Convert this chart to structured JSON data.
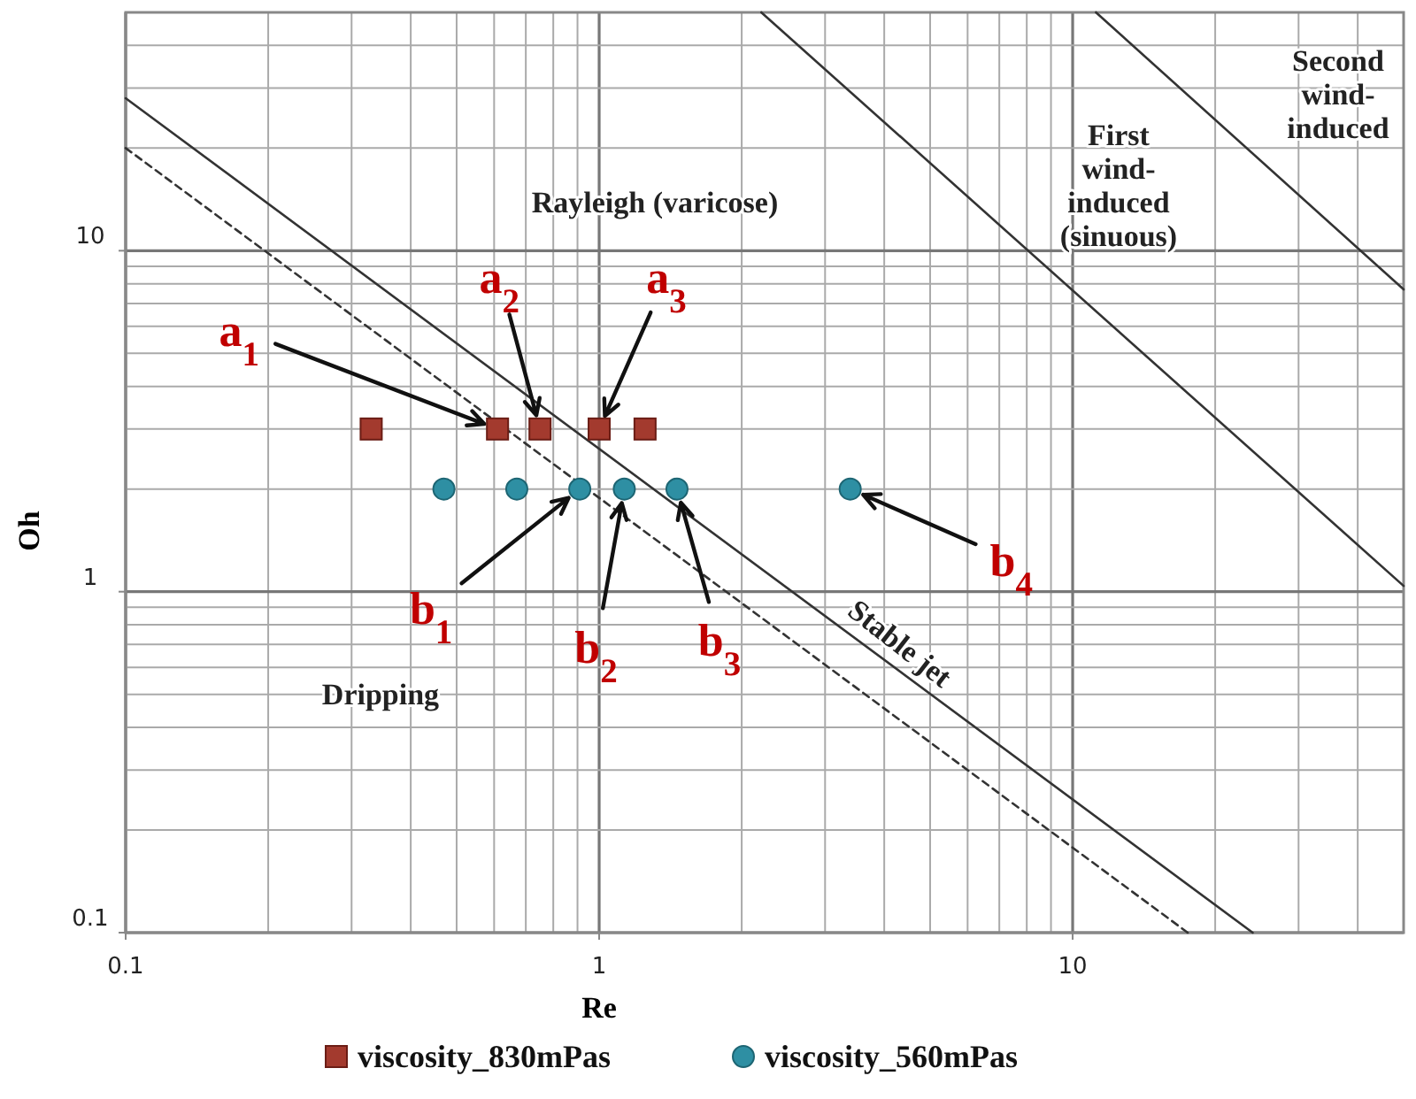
{
  "chart_data": {
    "type": "scatter",
    "xlabel": "Re",
    "ylabel": "Oh",
    "log": "xy",
    "grid": true,
    "legend": "bottom",
    "xlim": [
      0.1,
      50
    ],
    "ylim": [
      0.1,
      50
    ],
    "xticks": [
      0.1,
      1,
      10
    ],
    "yticks": [
      0.1,
      1,
      10
    ],
    "series": [
      {
        "name": "viscosity_830mPas",
        "marker": "square",
        "color": "#a33a2e",
        "x": [
          0.33,
          0.61,
          0.75,
          1.0,
          1.25
        ],
        "values": [
          3,
          3,
          3,
          3,
          3
        ]
      },
      {
        "name": "viscosity_560mPas",
        "marker": "circle",
        "color": "#2e8fa3",
        "x": [
          0.47,
          0.67,
          0.91,
          1.13,
          1.46,
          3.39
        ],
        "values": [
          2,
          2,
          2,
          2,
          2,
          2
        ]
      },
      {
        "type": "line",
        "line_style": "solid",
        "color": "#333333",
        "x": [
          0.1,
          24
        ],
        "values": [
          28,
          0.1
        ]
      },
      {
        "type": "line",
        "line_style": "dashed",
        "color": "#333333",
        "x": [
          0.1,
          17.5
        ],
        "values": [
          20,
          0.1
        ]
      },
      {
        "type": "line",
        "line_style": "solid",
        "color": "#333333",
        "x": [
          2.2,
          50
        ],
        "values": [
          50,
          1.04
        ]
      },
      {
        "type": "line",
        "line_style": "solid",
        "color": "#333333",
        "x": [
          11.2,
          50
        ],
        "values": [
          50,
          7.7
        ]
      }
    ],
    "annotations": [
      "Rayleigh (varicose)",
      "First\nwind-\ninduced\n(sinuous)",
      "Second\nwind-\ninduced",
      "Dripping",
      "Stable jet",
      {
        "text": "a$_{1}$",
        "x": 0.61,
        "y": 3
      },
      {
        "text": "a$_{2}$",
        "x": 0.75,
        "y": 3
      },
      {
        "text": "a$_{3}$",
        "x": 1.0,
        "y": 3
      },
      {
        "text": "b$_{1}$",
        "x": 0.91,
        "y": 2
      },
      {
        "text": "b$_{2}$",
        "x": 1.13,
        "y": 2
      },
      {
        "text": "b$_{3}$",
        "x": 1.46,
        "y": 2
      },
      {
        "text": "b$_{4}$",
        "x": 3.39,
        "y": 2
      }
    ]
  }
}
